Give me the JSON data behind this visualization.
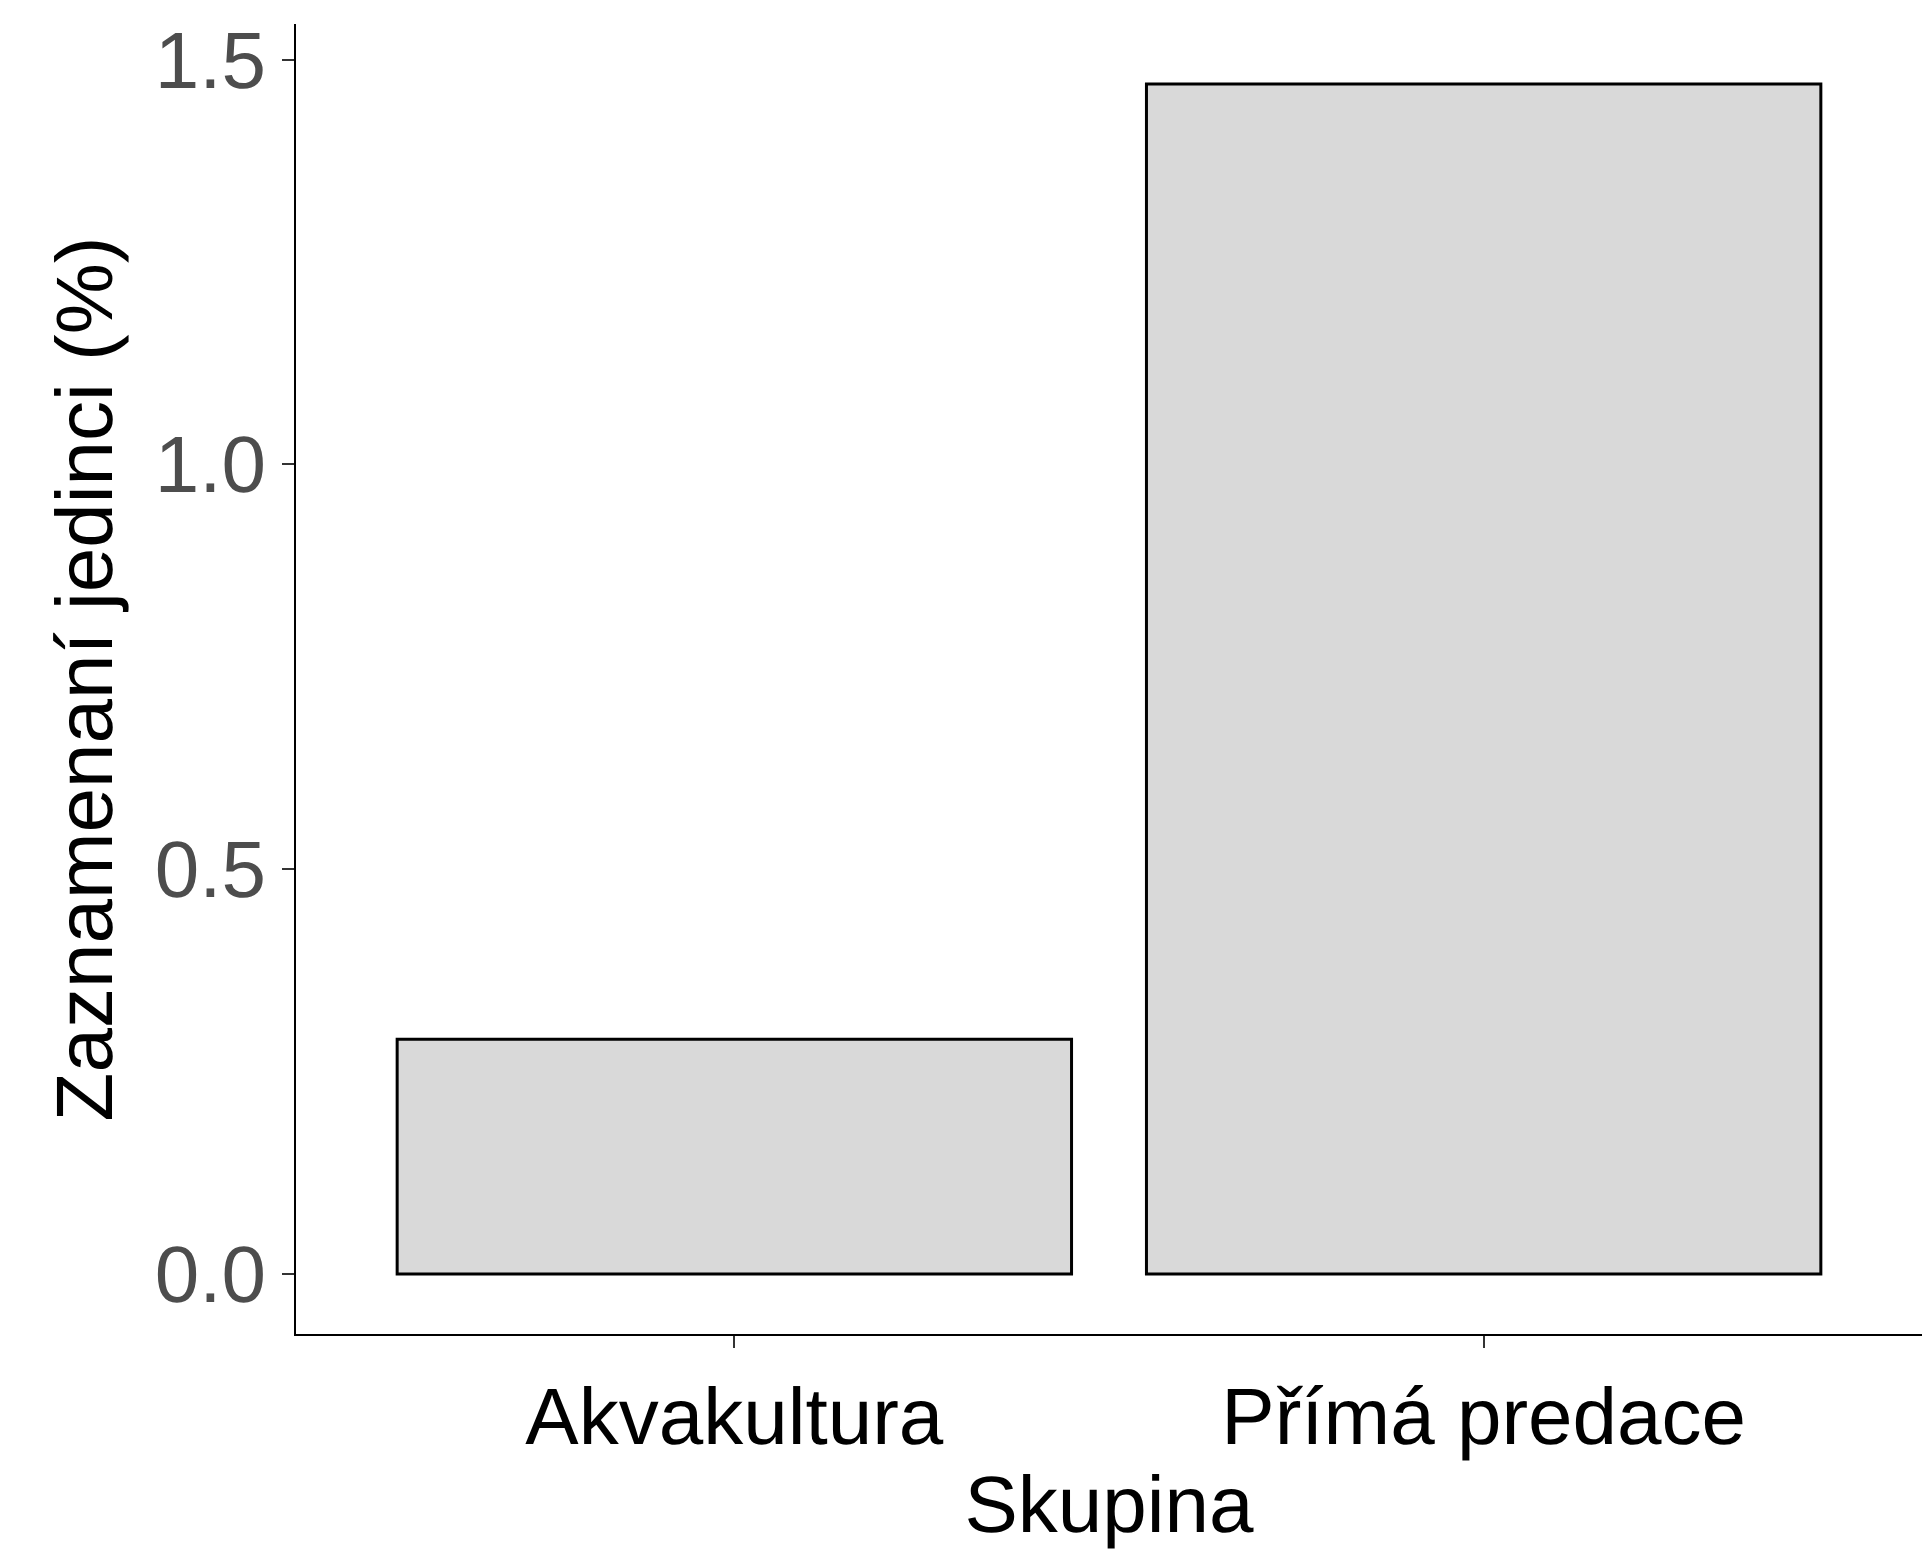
{
  "chart_data": {
    "type": "bar",
    "xlabel": "Skupina",
    "ylabel": "Zaznamenaní jedinci (%)",
    "categories": [
      "Akvakultura",
      "Přímá predace"
    ],
    "values": [
      0.29,
      1.47
    ],
    "color": "#d9d9d9",
    "ylim": [
      -0.074,
      1.544
    ],
    "yticks": [
      {
        "value": 0,
        "label": "0.0"
      },
      {
        "value": 0.5,
        "label": "0.5"
      },
      {
        "value": 1,
        "label": "1.0"
      },
      {
        "value": 1.5,
        "label": "1.5"
      }
    ]
  }
}
